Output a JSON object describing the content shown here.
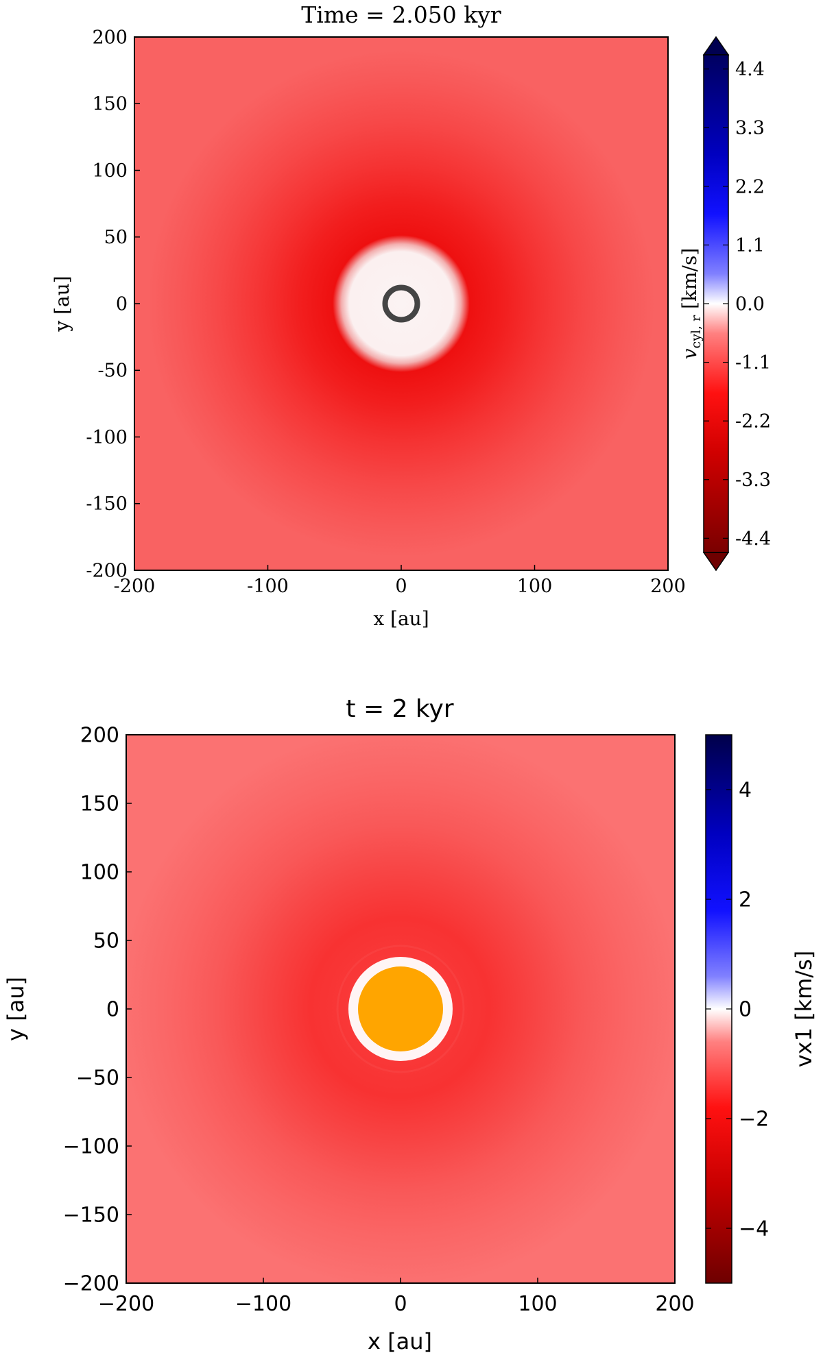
{
  "chart_data": [
    {
      "type": "heatmap",
      "title": "Time = 2.050 kyr",
      "xlabel": "x [au]",
      "ylabel": "y [au]",
      "xlim": [
        -200,
        200
      ],
      "ylim": [
        -200,
        200
      ],
      "xticks": [
        "-200",
        "-100",
        "0",
        "100",
        "200"
      ],
      "yticks": [
        "200",
        "150",
        "100",
        "50",
        "0",
        "-50",
        "-100",
        "-150",
        "-200"
      ],
      "colorbar": {
        "label_main": "v",
        "label_sub": "cyl, r",
        "label_unit": " [km/s]",
        "range": [
          -5,
          5
        ],
        "extend": "both",
        "ticks": [
          "4.4",
          "3.3",
          "2.2",
          "1.1",
          "0.0",
          "-1.1",
          "-2.2",
          "-3.3",
          "-4.4"
        ],
        "tick_values": [
          4.4,
          3.3,
          2.2,
          1.1,
          0.0,
          -1.1,
          -2.2,
          -3.3,
          -4.4
        ]
      },
      "field": {
        "description_values_km_s": "radial infall velocity, most negative (~-2.6 km/s) near r≈60 au, ~0 within r≈40 au, ~-1.3 km/s at r≈280 au",
        "inner_zero_radius_au": 40,
        "sink_radius_au": 9
      },
      "colors": {
        "sink_ring": "#444444"
      }
    },
    {
      "type": "heatmap",
      "title": "t = 2 kyr",
      "xlabel": "x [au]",
      "ylabel": "y [au]",
      "xlim": [
        -200,
        200
      ],
      "ylim": [
        -200,
        200
      ],
      "xticks": [
        "−200",
        "−100",
        "0",
        "100",
        "200"
      ],
      "yticks": [
        "200",
        "150",
        "100",
        "50",
        "0",
        "−50",
        "−100",
        "−150",
        "−200"
      ],
      "colorbar": {
        "label": "vx1 [km/s]",
        "range": [
          -5,
          5
        ],
        "ticks": [
          "4",
          "2",
          "0",
          "−2",
          "−4"
        ],
        "tick_values": [
          4,
          2,
          0,
          -2,
          -4
        ]
      },
      "field": {
        "inner_zero_radius_au": 38,
        "sink_radius_au": 31
      },
      "colors": {
        "sink_fill": "#ffa500"
      }
    }
  ]
}
